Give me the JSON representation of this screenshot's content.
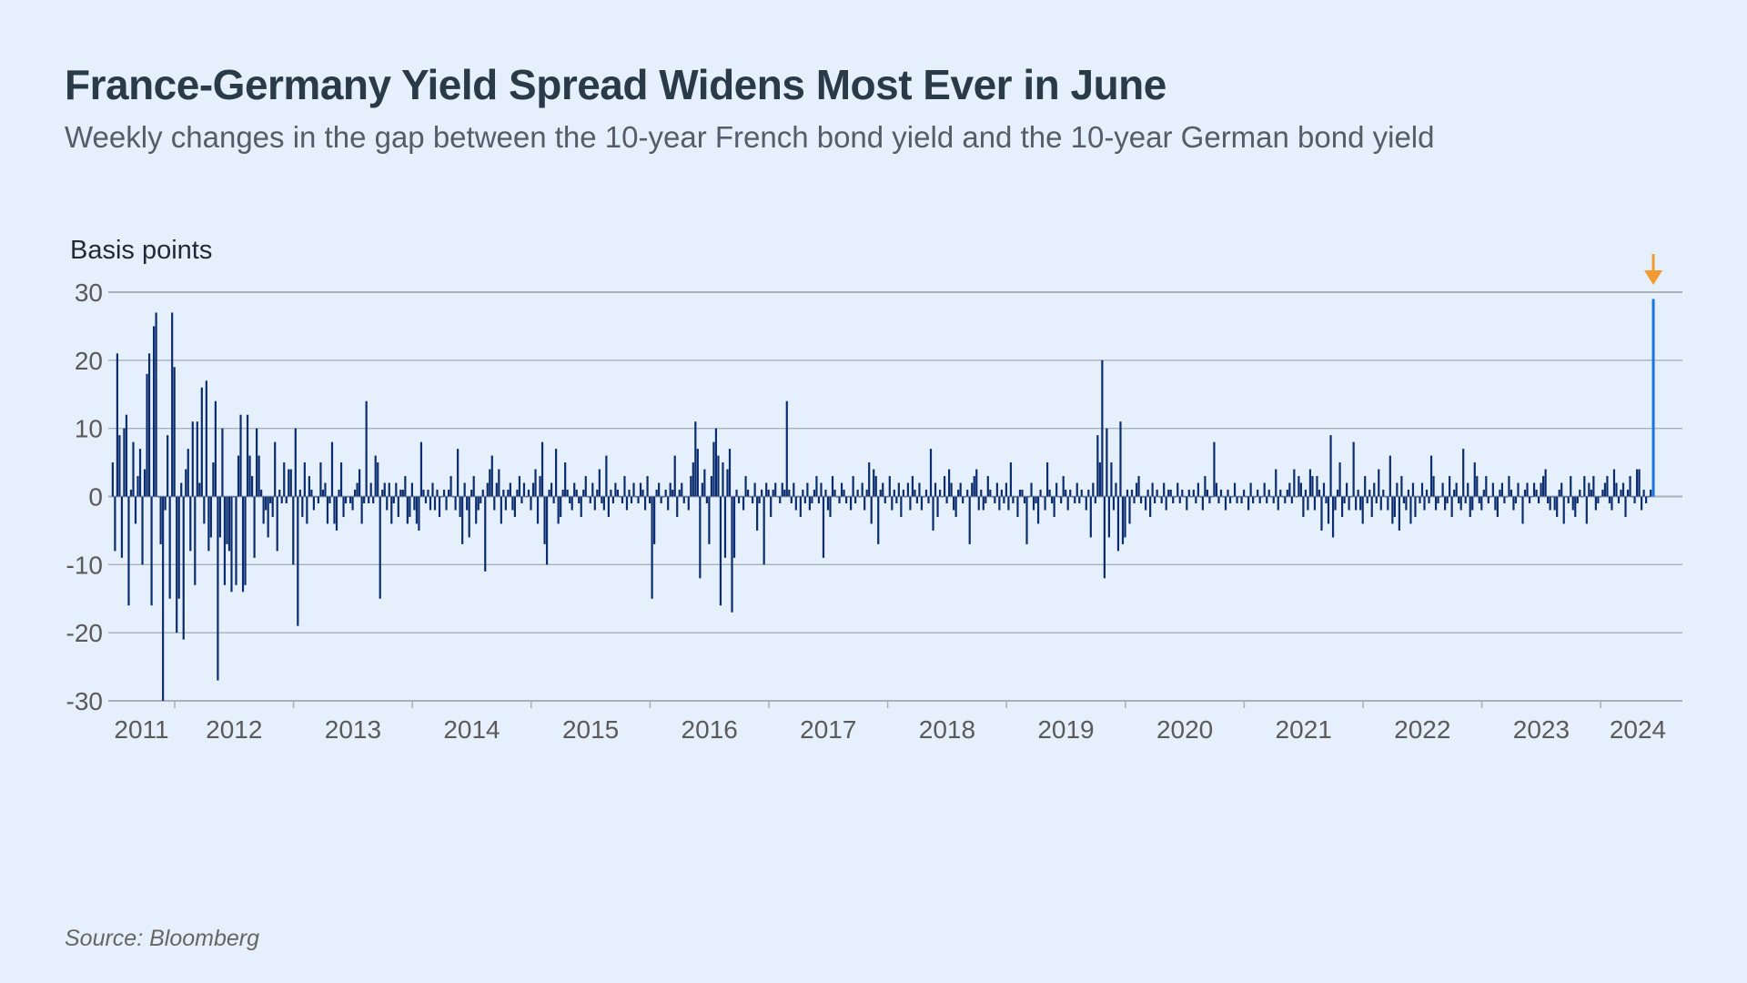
{
  "chart_data": {
    "type": "bar",
    "title": "France-Germany Yield Spread Widens Most Ever in June",
    "subtitle": "Weekly changes  in the gap between the 10-year French bond yield and the 10-year German bond yield",
    "ylabel": "Basis points",
    "xlabel": "",
    "source": "Source: Bloomberg",
    "ylim": [
      -30,
      30
    ],
    "yticks": [
      30,
      20,
      10,
      0,
      -10,
      -20,
      -30
    ],
    "xticks": [
      "2011",
      "2012",
      "2013",
      "2014",
      "2015",
      "2016",
      "2017",
      "2018",
      "2019",
      "2020",
      "2021",
      "2022",
      "2023",
      "2024"
    ],
    "x_start_year": 2011.47,
    "x_end_year": 2024.72,
    "frequency": "weekly",
    "grid": true,
    "colors": {
      "bars": "#0b2c6f",
      "highlight": "#1a74e2",
      "arrow": "#f09a30",
      "grid": "#a8b0b9",
      "background": "#e5f0fc"
    },
    "annotation": "arrow marking the latest week (June 2024), highlighted bar",
    "values": [
      5,
      -8,
      21,
      9,
      -9,
      10,
      12,
      -16,
      1,
      8,
      -4,
      3,
      7,
      -10,
      4,
      18,
      21,
      -16,
      25,
      27,
      0,
      -7,
      -30,
      -2,
      9,
      -15,
      27,
      19,
      -20,
      -15,
      2,
      -21,
      4,
      7,
      -8,
      11,
      -13,
      11,
      2,
      16,
      -4,
      17,
      -8,
      -6,
      5,
      14,
      -27,
      -6,
      10,
      -13,
      -7,
      -8,
      -14,
      0,
      -13,
      6,
      12,
      -14,
      -13,
      12,
      6,
      3,
      -9,
      10,
      6,
      1,
      -4,
      -2,
      -6,
      -1,
      -3,
      8,
      -8,
      1,
      -1,
      5,
      -1,
      4,
      4,
      -10,
      10,
      -19,
      1,
      -3,
      5,
      -4,
      3,
      1,
      -2,
      0,
      -1,
      5,
      1,
      2,
      -4,
      -1,
      8,
      -4,
      -5,
      1,
      5,
      -3,
      -1,
      0,
      -1,
      -2,
      1,
      2,
      4,
      -4,
      -1,
      14,
      -1,
      2,
      -1,
      6,
      5,
      -15,
      1,
      2,
      -2,
      2,
      -4,
      -1,
      2,
      -3,
      1,
      1,
      3,
      -4,
      -3,
      2,
      -2,
      -4,
      -5,
      8,
      1,
      -1,
      1,
      -2,
      2,
      -2,
      1,
      -3,
      0,
      1,
      -2,
      1,
      3,
      0,
      -2,
      7,
      -3,
      -7,
      2,
      -2,
      -6,
      1,
      3,
      -4,
      -2,
      -1,
      1,
      -11,
      2,
      4,
      6,
      -2,
      2,
      4,
      -4,
      1,
      -2,
      1,
      2,
      -2,
      -3,
      1,
      3,
      -1,
      2,
      0,
      1,
      -2,
      2,
      4,
      -4,
      3,
      8,
      -7,
      -10,
      1,
      2,
      -1,
      7,
      -4,
      -3,
      1,
      5,
      1,
      -1,
      -2,
      2,
      1,
      -1,
      -3,
      1,
      3,
      0,
      -1,
      2,
      -2,
      1,
      4,
      -1,
      -2,
      6,
      -3,
      1,
      -1,
      2,
      1,
      0,
      -1,
      3,
      -2,
      1,
      -1,
      2,
      0,
      -1,
      2,
      1,
      -2,
      3,
      -1,
      -15,
      -7,
      1,
      2,
      -1,
      0,
      1,
      -2,
      2,
      1,
      6,
      -3,
      1,
      2,
      -1,
      0,
      -2,
      3,
      5,
      11,
      7,
      -12,
      2,
      4,
      -1,
      -7,
      3,
      8,
      10,
      6,
      -16,
      5,
      -9,
      4,
      7,
      -17,
      -9,
      1,
      -1,
      0,
      -2,
      3,
      1,
      0,
      -1,
      2,
      -5,
      -1,
      1,
      -10,
      2,
      1,
      -3,
      1,
      2,
      0,
      -1,
      2,
      1,
      14,
      1,
      -1,
      2,
      -2,
      0,
      -3,
      1,
      -1,
      2,
      -2,
      -1,
      1,
      3,
      -1,
      2,
      -9,
      1,
      -2,
      -3,
      3,
      1,
      0,
      -1,
      2,
      1,
      -1,
      0,
      -2,
      3,
      -1,
      1,
      0,
      2,
      -2,
      1,
      5,
      -4,
      4,
      3,
      -7,
      1,
      2,
      -1,
      0,
      3,
      -2,
      1,
      -1,
      2,
      -3,
      1,
      0,
      2,
      -2,
      3,
      1,
      -1,
      2,
      -2,
      0,
      1,
      -1,
      7,
      -5,
      2,
      -3,
      1,
      0,
      3,
      -1,
      4,
      2,
      -2,
      -3,
      1,
      2,
      -1,
      0,
      1,
      -7,
      2,
      3,
      4,
      -2,
      1,
      -2,
      -1,
      3,
      1,
      0,
      -1,
      2,
      -2,
      1,
      -1,
      2,
      -2,
      5,
      -1,
      0,
      -3,
      1,
      1,
      -1,
      -7,
      0,
      2,
      -2,
      -1,
      -4,
      1,
      0,
      -2,
      5,
      1,
      -1,
      -3,
      2,
      0,
      -1,
      3,
      1,
      -2,
      1,
      0,
      -1,
      2,
      -1,
      1,
      0,
      -2,
      1,
      -6,
      2,
      -1,
      9,
      5,
      20,
      -12,
      10,
      -6,
      5,
      -2,
      2,
      -8,
      11,
      -7,
      -6,
      1,
      -4,
      1,
      -1,
      2,
      3,
      -1,
      0,
      -2,
      1,
      -3,
      2,
      -1,
      1,
      0,
      -1,
      2,
      -2,
      1,
      1,
      -1,
      0,
      2,
      -1,
      1,
      0,
      -2,
      1,
      0,
      1,
      -1,
      2,
      0,
      -2,
      3,
      1,
      -1,
      0,
      8,
      2,
      -1,
      1,
      0,
      -2,
      1,
      -1,
      0,
      2,
      -1,
      0,
      -1,
      1,
      0,
      -2,
      2,
      -1,
      0,
      1,
      -1,
      0,
      2,
      -1,
      1,
      0,
      -1,
      4,
      -2,
      1,
      0,
      -1,
      1,
      2,
      -1,
      4,
      0,
      3,
      2,
      -3,
      1,
      -2,
      4,
      3,
      -2,
      3,
      1,
      -5,
      2,
      -1,
      -4,
      9,
      -6,
      -2,
      1,
      5,
      -3,
      -1,
      2,
      -2,
      0,
      8,
      -2,
      1,
      -2,
      -4,
      3,
      -1,
      1,
      -3,
      2,
      -1,
      4,
      -2,
      1,
      0,
      -2,
      6,
      -4,
      -3,
      2,
      -5,
      3,
      -1,
      -2,
      1,
      -4,
      2,
      -3,
      0,
      -1,
      2,
      -2,
      1,
      -1,
      6,
      3,
      -2,
      -1,
      0,
      2,
      -2,
      -1,
      3,
      -3,
      1,
      2,
      -1,
      -2,
      7,
      -1,
      2,
      -3,
      -2,
      5,
      3,
      -1,
      -2,
      1,
      3,
      -1,
      0,
      2,
      -2,
      -3,
      1,
      2,
      -1,
      0,
      3,
      1,
      -2,
      -1,
      2,
      0,
      -4,
      1,
      2,
      -1,
      0,
      2,
      1,
      -1,
      2,
      3,
      4,
      -1,
      -2,
      0,
      -2,
      -3,
      1,
      2,
      -4,
      0,
      -1,
      3,
      -2,
      -3,
      -1,
      1,
      0,
      3,
      -4,
      2,
      1,
      3,
      -2,
      -1,
      0,
      1,
      2,
      3,
      -1,
      -2,
      4,
      2,
      -1,
      1,
      2,
      -3,
      1,
      3,
      0,
      -1,
      4,
      4,
      -2,
      1,
      -1,
      0,
      1,
      29
    ]
  }
}
